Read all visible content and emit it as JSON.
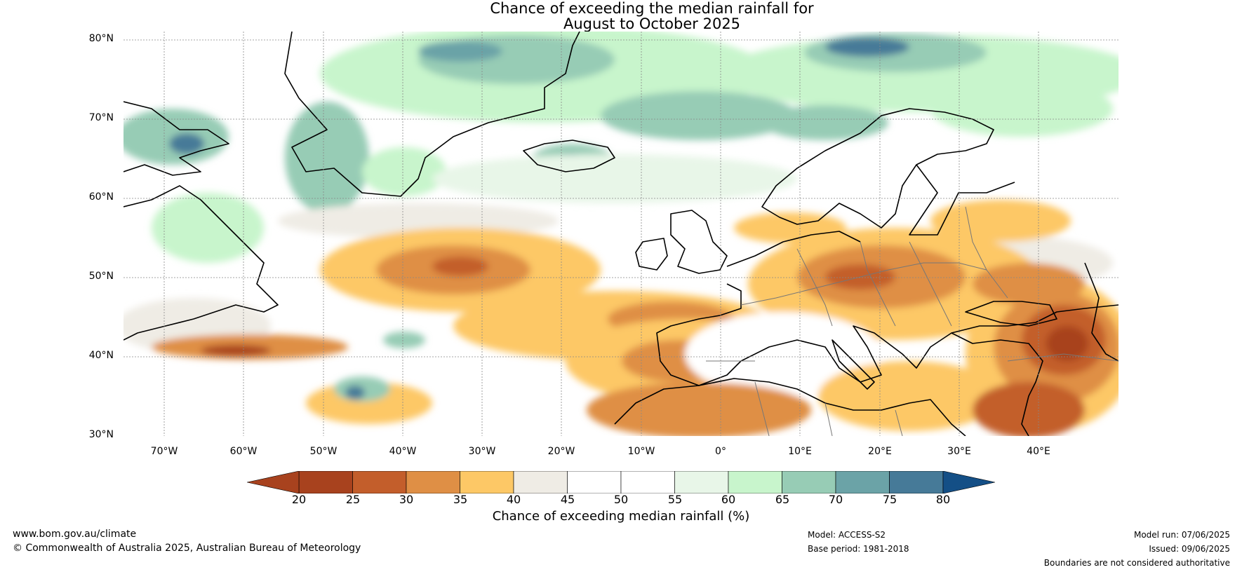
{
  "title_line1": "Chance of exceeding the median rainfall for",
  "title_line2": "August to October 2025",
  "lat_ticks": [
    "80°N",
    "70°N",
    "60°N",
    "50°N",
    "40°N",
    "30°N"
  ],
  "lon_ticks": [
    "70°W",
    "60°W",
    "50°W",
    "40°W",
    "30°W",
    "20°W",
    "10°W",
    "0°",
    "10°E",
    "20°E",
    "30°E",
    "40°E"
  ],
  "colorbar": {
    "ticks": [
      "20",
      "25",
      "30",
      "35",
      "40",
      "45",
      "50",
      "55",
      "60",
      "65",
      "70",
      "75",
      "80"
    ],
    "label": "Chance of exceeding median rainfall (%)",
    "colors": [
      "#a8421e",
      "#c35e2b",
      "#df8f45",
      "#fdc866",
      "#efece5",
      "#ffffff",
      "#ffffff",
      "#e8f6e8",
      "#c8f5cc",
      "#97ccb5",
      "#6ba3a7",
      "#467a98"
    ],
    "under_color": "#a8421e",
    "over_color": "#144f86"
  },
  "footer": {
    "website": "www.bom.gov.au/climate",
    "copyright": "© Commonwealth of Australia 2025, Australian Bureau of Meteorology",
    "model": "Model: ACCESS-S2",
    "base_period": "Base period: 1981-2018",
    "model_run": "Model run: 07/06/2025",
    "issued": "Issued: 09/06/2025",
    "disclaimer": "Boundaries are not considered authoritative"
  }
}
